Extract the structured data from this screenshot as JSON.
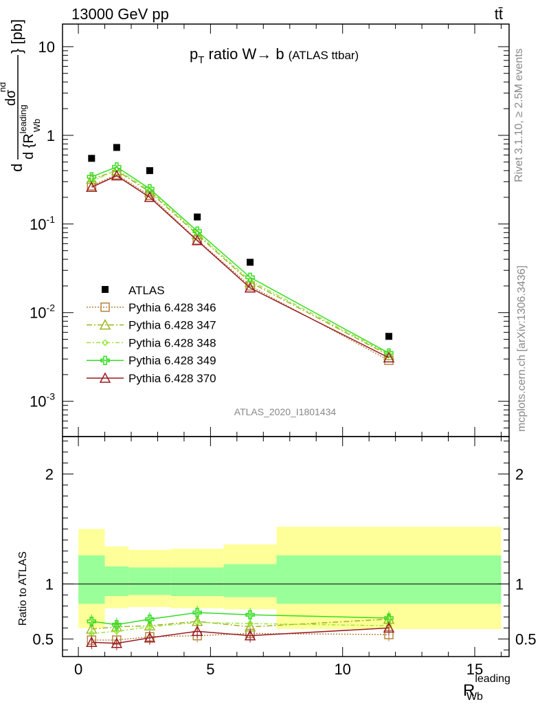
{
  "header": {
    "energy_label": "13000 GeV pp",
    "process_label": "tt̄"
  },
  "title": {
    "prefix": "p",
    "sub": "T",
    "main": " ratio W→ b",
    "note": "(ATLAS ttbar)"
  },
  "side_labels": {
    "rivet": "Rivet 3.1.10, ≥ 2.5M events",
    "mcplots": "mcplots.cern.ch [arXiv:1306.3436]"
  },
  "analysis_id": "ATLAS_2020_I1801434",
  "axis": {
    "upper_ylabel_top": "dσ",
    "upper_ylabel_sup": "nd",
    "upper_ylabel_den": "d {R",
    "upper_ylabel_den_sup": "leading",
    "upper_ylabel_den_sub": "Wb",
    "upper_ylabel_unit": "} [pb]",
    "upper_ylabel_d": "d",
    "ratio_ylabel": "Ratio to ATLAS",
    "xlabel_main": "R",
    "xlabel_sup": "leading",
    "xlabel_sub": "Wb",
    "x_ticks": [
      "0",
      "5",
      "10",
      "15"
    ],
    "upper_ticks": [
      {
        "base": "10",
        "exp": "-3"
      },
      {
        "base": "10",
        "exp": "-2"
      },
      {
        "base": "10",
        "exp": "-1"
      },
      {
        "base": "1",
        "exp": ""
      },
      {
        "base": "10",
        "exp": ""
      }
    ],
    "ratio_ticks": [
      "0.5",
      "1",
      "2"
    ]
  },
  "chart_data": {
    "type": "line",
    "x_range": [
      -0.6,
      16.3
    ],
    "upper": {
      "log_y": true,
      "y_range": [
        0.0004,
        18
      ],
      "data": {
        "name": "ATLAS",
        "x": [
          0.5,
          1.45,
          2.7,
          4.5,
          6.5,
          11.75
        ],
        "y": [
          0.55,
          0.73,
          0.4,
          0.12,
          0.037,
          0.0054
        ]
      },
      "series": [
        {
          "name": "Pythia 6.428 346",
          "color": "#b5823f",
          "dash": "2,2",
          "marker": "square",
          "y": [
            0.27,
            0.36,
            0.21,
            0.066,
            0.02,
            0.0029
          ]
        },
        {
          "name": "Pythia 6.428 347",
          "color": "#9bb51f",
          "dash": "8,3,2,3",
          "marker": "triangle",
          "y": [
            0.32,
            0.4,
            0.23,
            0.076,
            0.022,
            0.0033
          ]
        },
        {
          "name": "Pythia 6.428 348",
          "color": "#99e63a",
          "dash": "6,3,2,3",
          "marker": "diamond",
          "y": [
            0.3,
            0.41,
            0.24,
            0.079,
            0.023,
            0.0034
          ]
        },
        {
          "name": "Pythia 6.428 349",
          "color": "#33dd22",
          "dash": "",
          "marker": "cross",
          "y": [
            0.34,
            0.44,
            0.25,
            0.083,
            0.025,
            0.0035
          ]
        },
        {
          "name": "Pythia 6.428 370",
          "color": "#991a22",
          "dash": "",
          "marker": "triangle",
          "y": [
            0.26,
            0.35,
            0.2,
            0.065,
            0.019,
            0.0031
          ]
        }
      ]
    },
    "ratio": {
      "y_range": [
        0.34,
        2.34
      ],
      "bands": {
        "edges": [
          0,
          1,
          1.9,
          3.5,
          5.5,
          7.5,
          16
        ],
        "yellow_low": [
          0.6,
          0.78,
          0.79,
          0.78,
          0.77,
          0.59
        ],
        "yellow_high": [
          1.5,
          1.34,
          1.31,
          1.32,
          1.36,
          1.52
        ],
        "green_low": [
          0.82,
          0.89,
          0.9,
          0.89,
          0.88,
          0.82
        ],
        "green_high": [
          1.26,
          1.16,
          1.15,
          1.15,
          1.18,
          1.26
        ]
      },
      "series": [
        {
          "name": "Pythia 6.428 346",
          "y": [
            0.49,
            0.49,
            0.52,
            0.53,
            0.55,
            0.54
          ]
        },
        {
          "name": "Pythia 6.428 347",
          "y": [
            0.59,
            0.61,
            0.62,
            0.66,
            0.61,
            0.68
          ]
        },
        {
          "name": "Pythia 6.428 348",
          "y": [
            0.55,
            0.57,
            0.61,
            0.65,
            0.64,
            0.62
          ]
        },
        {
          "name": "Pythia 6.428 349",
          "y": [
            0.66,
            0.63,
            0.68,
            0.74,
            0.72,
            0.69
          ]
        },
        {
          "name": "Pythia 6.428 370",
          "y": [
            0.47,
            0.46,
            0.51,
            0.57,
            0.53,
            0.6
          ]
        }
      ]
    },
    "legend_placement": "middle-left"
  }
}
